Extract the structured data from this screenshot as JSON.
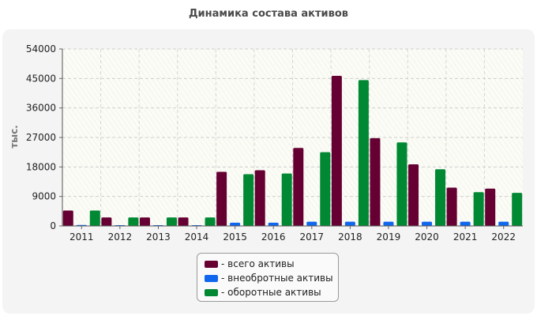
{
  "title": "Динамика состава активов",
  "chart_data": {
    "type": "bar",
    "title": "Динамика состава активов",
    "ylabel": "тыс.",
    "xlabel": "",
    "ylim": [
      0,
      54000
    ],
    "yticks": [
      0,
      9000,
      18000,
      27000,
      36000,
      45000,
      54000
    ],
    "categories": [
      "2011",
      "2012",
      "2013",
      "2014",
      "2015",
      "2016",
      "2017",
      "2018",
      "2019",
      "2020",
      "2021",
      "2022"
    ],
    "series": [
      {
        "name": "- всего активы",
        "color": "#660033",
        "values": [
          4700,
          2600,
          2600,
          2600,
          16500,
          17000,
          23800,
          45800,
          26800,
          18800,
          11700,
          11400
        ]
      },
      {
        "name": "- внеобротные активы",
        "color": "#1166ee",
        "values": [
          300,
          200,
          200,
          200,
          1000,
          1000,
          1300,
          1300,
          1300,
          1300,
          1300,
          1300
        ]
      },
      {
        "name": "- оборотные активы",
        "color": "#008833",
        "values": [
          4700,
          2600,
          2600,
          2600,
          15800,
          16000,
          22500,
          44500,
          25500,
          17300,
          10300,
          10100
        ]
      }
    ],
    "grid": true,
    "legend_position": "bottom-center"
  }
}
